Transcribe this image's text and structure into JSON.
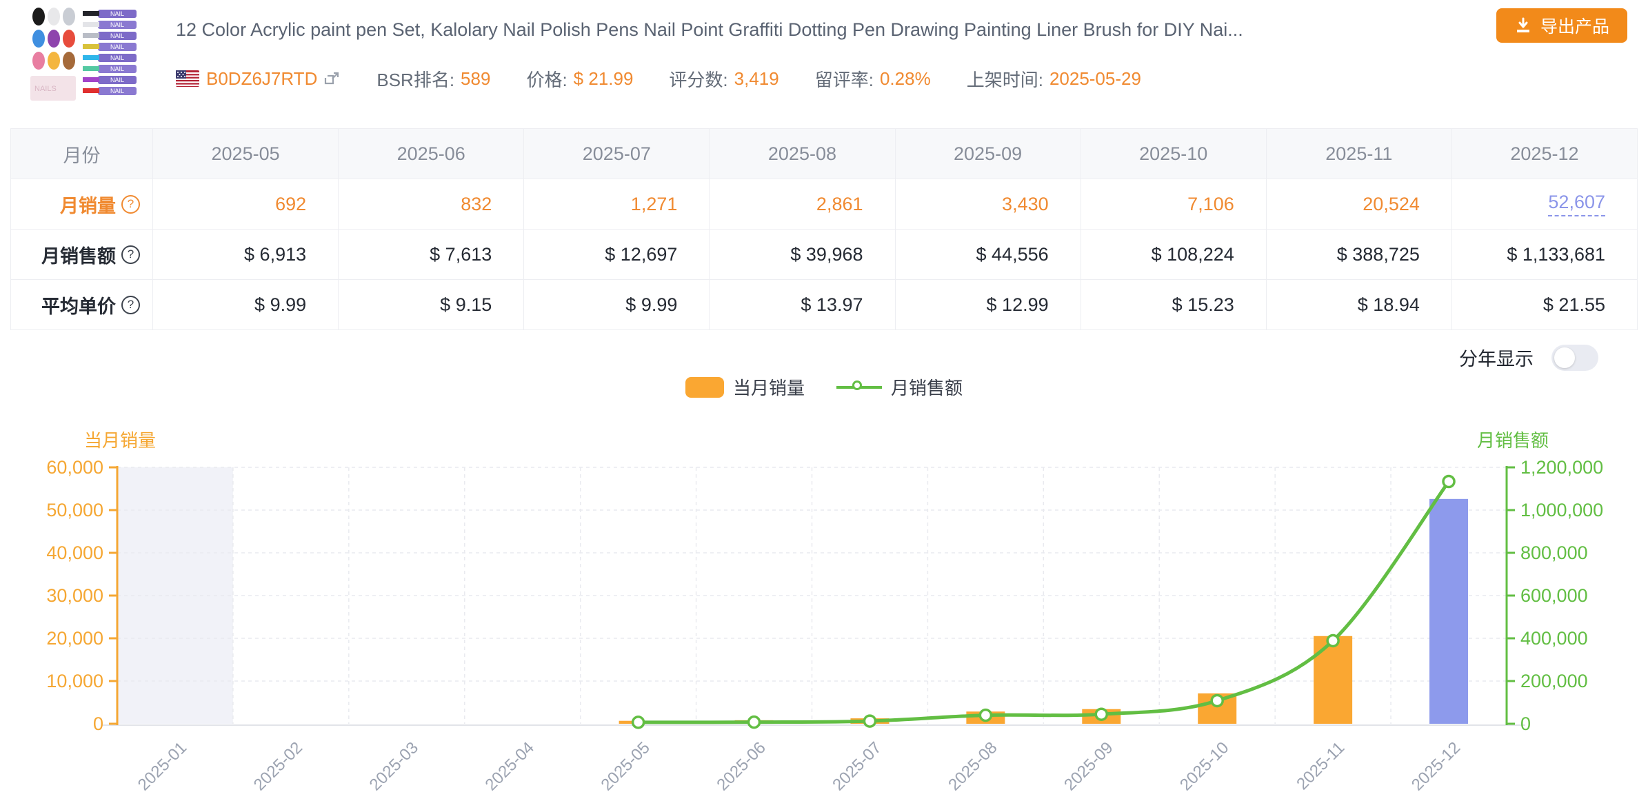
{
  "header": {
    "title": "12 Color Acrylic paint pen Set, Kalolary Nail Polish Pens Nail Point Graffiti Dotting Pen Drawing Painting Liner Brush for DIY Nai...",
    "asin": "B0DZ6J7RTD",
    "flag": "us-flag",
    "metrics": [
      {
        "label": "BSR排名:",
        "value": "589"
      },
      {
        "label": "价格:",
        "value": "$ 21.99"
      },
      {
        "label": "评分数:",
        "value": "3,419"
      },
      {
        "label": "留评率:",
        "value": "0.28%"
      },
      {
        "label": "上架时间:",
        "value": "2025-05-29"
      }
    ],
    "export_button_label": "导出产品"
  },
  "table": {
    "month_col_header": "月份",
    "months": [
      "2025-05",
      "2025-06",
      "2025-07",
      "2025-08",
      "2025-09",
      "2025-10",
      "2025-11",
      "2025-12"
    ],
    "rows": [
      {
        "label": "月销量",
        "values": [
          "692",
          "832",
          "1,271",
          "2,861",
          "3,430",
          "7,106",
          "20,524",
          "52,607"
        ]
      },
      {
        "label": "月销售额",
        "values": [
          "$ 6,913",
          "$ 7,613",
          "$ 12,697",
          "$ 39,968",
          "$ 44,556",
          "$ 108,224",
          "$ 388,725",
          "$ 1,133,681"
        ]
      },
      {
        "label": "平均单价",
        "values": [
          "$ 9.99",
          "$ 9.15",
          "$ 9.99",
          "$ 13.97",
          "$ 12.99",
          "$ 15.23",
          "$ 18.94",
          "$ 21.55"
        ]
      }
    ]
  },
  "controls": {
    "year_toggle_label": "分年显示",
    "year_toggle_state": "off"
  },
  "legend": {
    "items": [
      {
        "label": "当月销量",
        "type": "bar",
        "color": "#FAA732"
      },
      {
        "label": "月销售额",
        "type": "line",
        "color": "#62BE43"
      }
    ]
  },
  "chart_data": {
    "type": "bar",
    "title": "",
    "categories": [
      "2025-01",
      "2025-02",
      "2025-03",
      "2025-04",
      "2025-05",
      "2025-06",
      "2025-07",
      "2025-08",
      "2025-09",
      "2025-10",
      "2025-11",
      "2025-12"
    ],
    "series": [
      {
        "name": "当月销量",
        "type": "bar",
        "axis": "left",
        "color": "#FAA732",
        "last_bar_color": "#8D9AEC",
        "values": [
          null,
          null,
          null,
          null,
          692,
          832,
          1271,
          2861,
          3430,
          7106,
          20524,
          52607
        ]
      },
      {
        "name": "月销售额",
        "type": "line",
        "axis": "right",
        "color": "#62BE43",
        "values": [
          null,
          null,
          null,
          null,
          6913,
          7613,
          12697,
          39968,
          44556,
          108224,
          388725,
          1133681
        ]
      }
    ],
    "left_axis": {
      "name": "当月销量",
      "min": 0,
      "max": 60000,
      "tick_step": 10000,
      "color": "#F5A733"
    },
    "right_axis": {
      "name": "月销售额",
      "min": 0,
      "max": 1200000,
      "tick_step": 200000,
      "color": "#62BE43"
    },
    "grid": "dashed",
    "legend_position": "top-center",
    "highlight_column_index": 0,
    "x_label_rotate": 45
  }
}
